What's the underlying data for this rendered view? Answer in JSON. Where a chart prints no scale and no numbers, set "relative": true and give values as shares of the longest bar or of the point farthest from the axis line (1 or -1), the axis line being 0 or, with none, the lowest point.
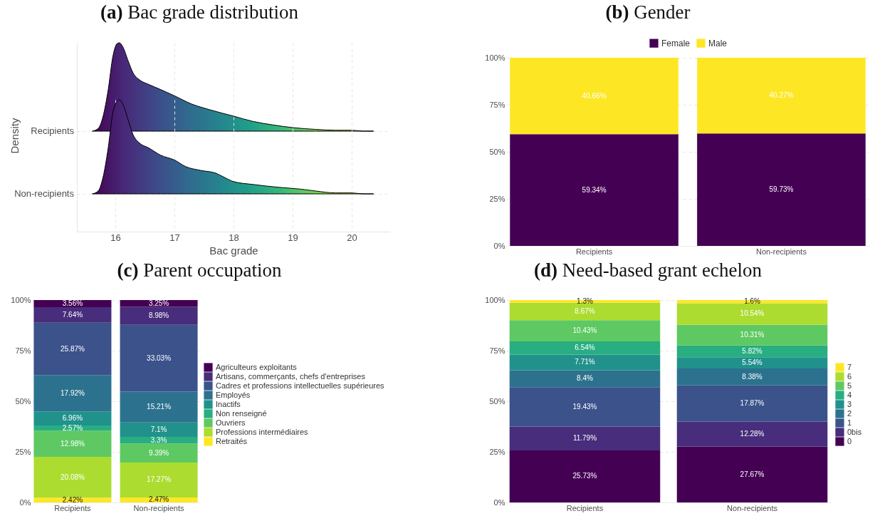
{
  "chart_data": [
    {
      "type": "area",
      "title": "(a) Bac grade distribution",
      "relative": true,
      "grid": true,
      "tick_labels": false,
      "xlim": [
        15.35,
        20.65
      ],
      "xticks": [
        16,
        17,
        18,
        19,
        20
      ],
      "series": [
        {
          "name": "Recipients",
          "x": [
            15.61,
            15.71,
            15.79,
            15.88,
            15.96,
            16.03,
            16.07,
            16.13,
            16.22,
            16.3,
            16.41,
            16.56,
            16.77,
            17.0,
            17.28,
            17.61,
            18.0,
            18.33,
            18.67,
            19.0,
            19.39,
            19.73,
            20.0,
            20.2,
            20.37
          ],
          "values": [
            0,
            0.03,
            0.16,
            0.47,
            0.85,
            0.99,
            1,
            0.95,
            0.79,
            0.66,
            0.58,
            0.53,
            0.47,
            0.4,
            0.31,
            0.24,
            0.17,
            0.11,
            0.07,
            0.04,
            0.02,
            0.01,
            0.01,
            0,
            0
          ]
        }
      ]
    },
    {
      "type": "area",
      "xlabel": "Bac grade",
      "ylabel": "Density",
      "relative": true,
      "grid": true,
      "tick_labels": "x",
      "xlim": [
        15.35,
        20.65
      ],
      "xticks": [
        16,
        17,
        18,
        19,
        20
      ],
      "series": [
        {
          "name": "Non-recipients",
          "x": [
            15.61,
            15.71,
            15.79,
            15.88,
            15.96,
            16.03,
            16.07,
            16.13,
            16.22,
            16.3,
            16.41,
            16.56,
            16.77,
            17.0,
            17.19,
            17.44,
            17.7,
            17.83,
            18.0,
            18.33,
            18.76,
            19.14,
            19.39,
            19.73,
            20.0,
            20.2,
            20.37
          ],
          "values": [
            0,
            0.03,
            0.17,
            0.49,
            0.87,
            0.98,
            1,
            0.95,
            0.78,
            0.63,
            0.54,
            0.49,
            0.41,
            0.36,
            0.29,
            0.25,
            0.22,
            0.18,
            0.13,
            0.1,
            0.07,
            0.05,
            0.03,
            0.01,
            0.01,
            0,
            0
          ]
        }
      ]
    },
    {
      "type": "bar",
      "title": "(b) Gender",
      "stacked": true,
      "categories": [
        "Recipients",
        "Non-recipients"
      ],
      "ylim": [
        0,
        100
      ],
      "yticks": [
        {
          "value": 0,
          "label": "0%"
        },
        {
          "value": 25,
          "label": "25%"
        },
        {
          "value": 50,
          "label": "50%"
        },
        {
          "value": 75,
          "label": "75%"
        },
        {
          "value": 100,
          "label": "100%"
        }
      ],
      "grid": "y",
      "legend": "top",
      "series": [
        {
          "name": "Female",
          "color": "#440154",
          "values": [
            59.34,
            59.73
          ],
          "value_labels": [
            "59.34%",
            "59.73%"
          ]
        },
        {
          "name": "Male",
          "color": "#fde725",
          "values": [
            40.66,
            40.27
          ],
          "value_labels": [
            "40.66%",
            "40.27%"
          ]
        }
      ]
    },
    {
      "type": "bar",
      "title": "(c) Parent occupation",
      "stacked": true,
      "categories": [
        "Recipients",
        "Non-recipients"
      ],
      "ylim": [
        0,
        100
      ],
      "yticks": [
        {
          "value": 0,
          "label": "0%"
        },
        {
          "value": 25,
          "label": "25%"
        },
        {
          "value": 50,
          "label": "50%"
        },
        {
          "value": 75,
          "label": "75%"
        },
        {
          "value": 100,
          "label": "100%"
        }
      ],
      "grid": "y",
      "legend": "right",
      "series": [
        {
          "name": "Retraités",
          "color": "#fde725",
          "values": [
            2.42,
            2.47
          ],
          "value_labels": [
            "2.42%",
            "2.47%"
          ]
        },
        {
          "name": "Professions intermédiaires",
          "color": "#addc30",
          "values": [
            20.08,
            17.27
          ],
          "value_labels": [
            "20.08%",
            "17.27%"
          ]
        },
        {
          "name": "Ouvriers",
          "color": "#5ec962",
          "values": [
            12.98,
            9.39
          ],
          "value_labels": [
            "12.98%",
            "9.39%"
          ]
        },
        {
          "name": "Non renseigné",
          "color": "#28ae80",
          "values": [
            2.57,
            3.3
          ],
          "value_labels": [
            "2.57%",
            "3.3%"
          ]
        },
        {
          "name": "Inactifs",
          "color": "#21918c",
          "values": [
            6.96,
            7.1
          ],
          "value_labels": [
            "6.96%",
            "7.1%"
          ]
        },
        {
          "name": "Employés",
          "color": "#2c728e",
          "values": [
            17.92,
            15.21
          ],
          "value_labels": [
            "17.92%",
            "15.21%"
          ]
        },
        {
          "name": "Cadres et professions intellectuelles supérieures",
          "color": "#3b528b",
          "values": [
            25.87,
            33.03
          ],
          "value_labels": [
            "25.87%",
            "33.03%"
          ]
        },
        {
          "name": "Artisans, commerçants, chefs d'entreprises",
          "color": "#472d7b",
          "values": [
            7.64,
            8.98
          ],
          "value_labels": [
            "7.64%",
            "8.98%"
          ]
        },
        {
          "name": "Agriculteurs exploitants",
          "color": "#440154",
          "values": [
            3.56,
            3.25
          ],
          "value_labels": [
            "3.56%",
            "3.25%"
          ]
        }
      ]
    },
    {
      "type": "bar",
      "title": "(d) Need-based grant echelon",
      "stacked": true,
      "categories": [
        "Recipients",
        "Non-recipients"
      ],
      "ylim": [
        0,
        100
      ],
      "yticks": [
        {
          "value": 0,
          "label": "0%"
        },
        {
          "value": 25,
          "label": "25%"
        },
        {
          "value": 50,
          "label": "50%"
        },
        {
          "value": 75,
          "label": "75%"
        },
        {
          "value": 100,
          "label": "100%"
        }
      ],
      "grid": "y",
      "legend": "right",
      "series": [
        {
          "name": "0",
          "color": "#440154",
          "values": [
            25.73,
            27.67
          ],
          "value_labels": [
            "25.73%",
            "27.67%"
          ]
        },
        {
          "name": "0bis",
          "color": "#472d7b",
          "values": [
            11.79,
            12.28
          ],
          "value_labels": [
            "11.79%",
            "12.28%"
          ]
        },
        {
          "name": "1",
          "color": "#3b528b",
          "values": [
            19.43,
            17.87
          ],
          "value_labels": [
            "19.43%",
            "17.87%"
          ]
        },
        {
          "name": "2",
          "color": "#2c728e",
          "values": [
            8.4,
            8.38
          ],
          "value_labels": [
            "8.4%",
            "8.38%"
          ]
        },
        {
          "name": "3",
          "color": "#21918c",
          "values": [
            7.71,
            5.54
          ],
          "value_labels": [
            "7.71%",
            "5.54%"
          ]
        },
        {
          "name": "4",
          "color": "#28ae80",
          "values": [
            6.54,
            5.82
          ],
          "value_labels": [
            "6.54%",
            "5.82%"
          ]
        },
        {
          "name": "5",
          "color": "#5ec962",
          "values": [
            10.43,
            10.31
          ],
          "value_labels": [
            "10.43%",
            "10.31%"
          ]
        },
        {
          "name": "6",
          "color": "#addc30",
          "values": [
            8.67,
            10.54
          ],
          "value_labels": [
            "8.67%",
            "10.54%"
          ]
        },
        {
          "name": "7",
          "color": "#fde725",
          "values": [
            1.3,
            1.6
          ],
          "value_labels": [
            "1.3%",
            "1.6%"
          ]
        }
      ]
    }
  ]
}
